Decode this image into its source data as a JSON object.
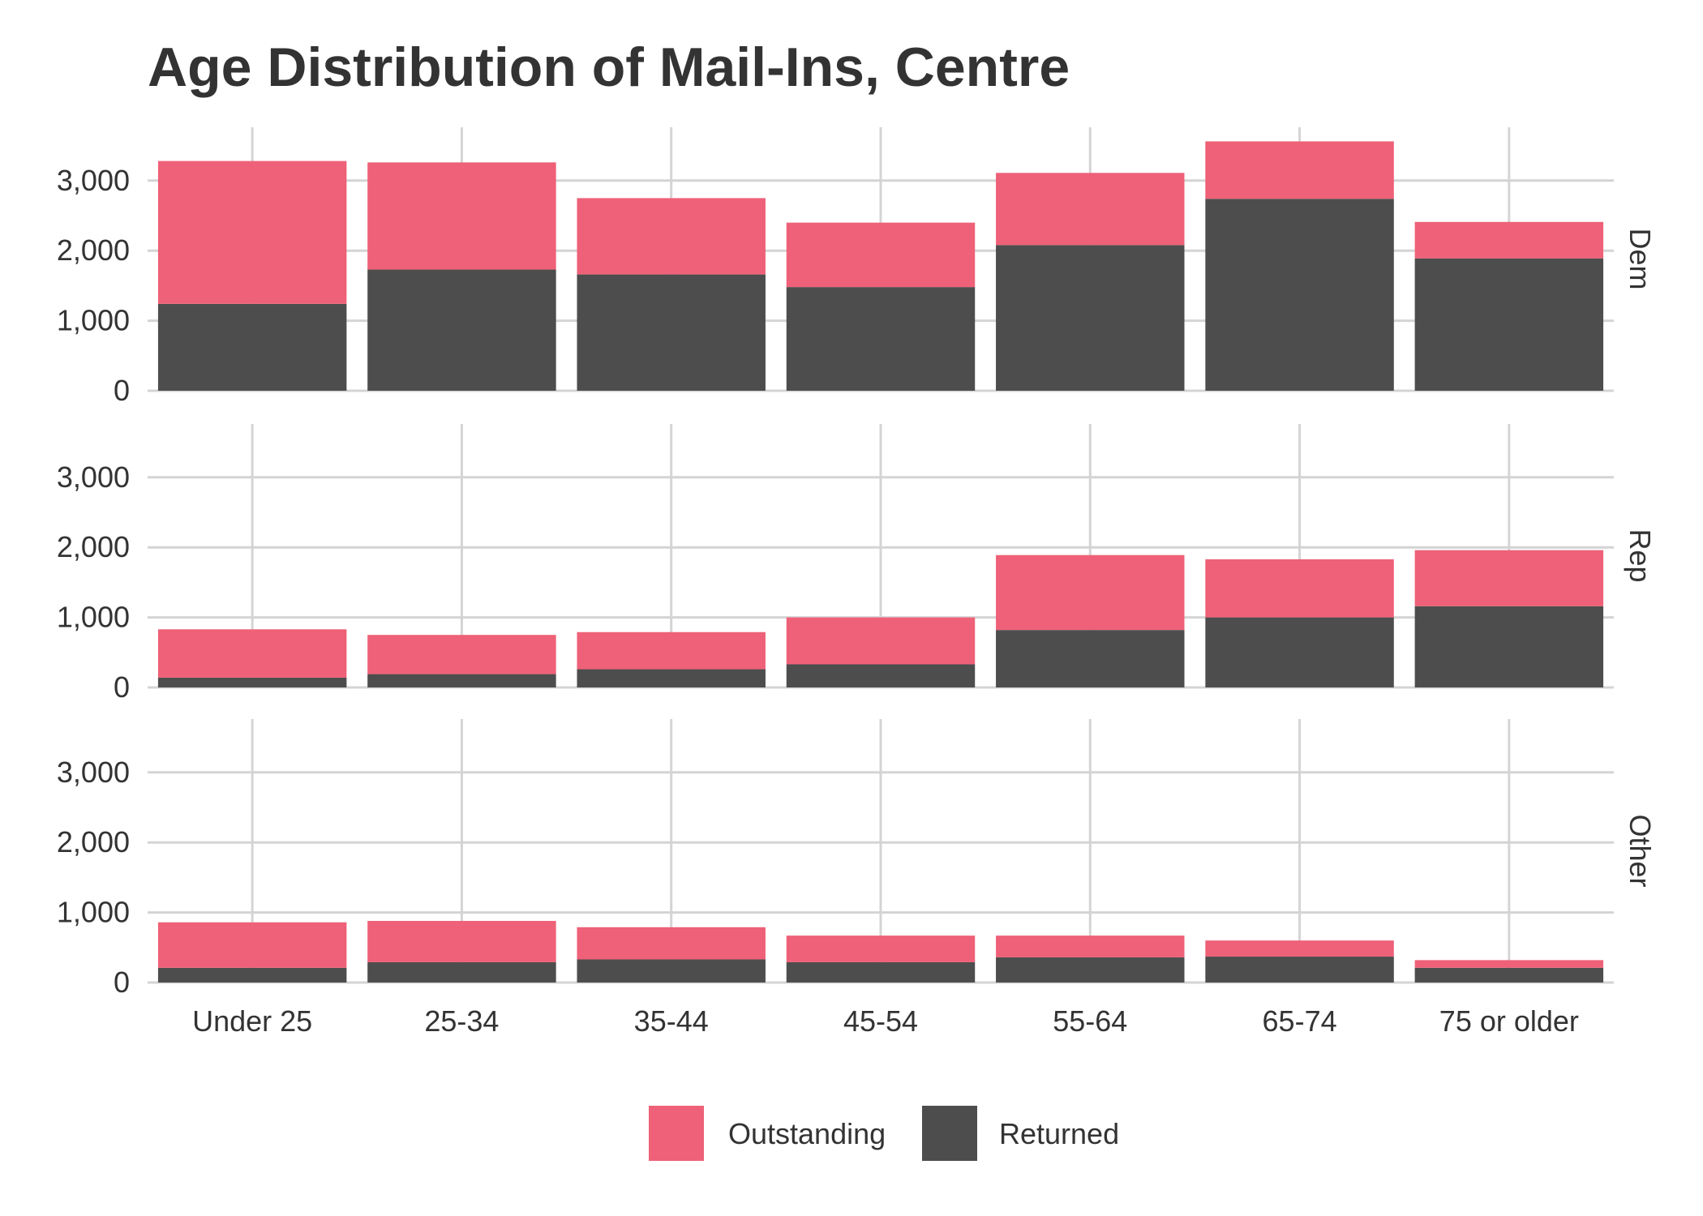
{
  "chart_data": {
    "type": "bar",
    "stacked": true,
    "title": "Age Distribution of Mail-Ins, Centre",
    "xlabel": "",
    "ylabel": "",
    "categories": [
      "Under 25",
      "25-34",
      "35-44",
      "45-54",
      "55-64",
      "65-74",
      "75 or older"
    ],
    "ylim": [
      0,
      3700
    ],
    "yticks": [
      0,
      1000,
      2000,
      3000
    ],
    "ytick_labels": [
      "0",
      "1,000",
      "2,000",
      "3,000"
    ],
    "grid": true,
    "legend_position": "bottom",
    "colors": {
      "Outstanding": "#ee6178",
      "Returned": "#4d4d4d"
    },
    "facets": [
      {
        "name": "Dem",
        "series": [
          {
            "name": "Returned",
            "values": [
              1240,
              1730,
              1660,
              1480,
              2080,
              2740,
              1890
            ]
          },
          {
            "name": "Outstanding",
            "values": [
              2040,
              1530,
              1090,
              920,
              1030,
              820,
              520
            ]
          }
        ]
      },
      {
        "name": "Rep",
        "series": [
          {
            "name": "Returned",
            "values": [
              140,
              190,
              260,
              330,
              820,
              1000,
              1160
            ]
          },
          {
            "name": "Outstanding",
            "values": [
              690,
              560,
              530,
              670,
              1070,
              830,
              800
            ]
          }
        ]
      },
      {
        "name": "Other",
        "series": [
          {
            "name": "Returned",
            "values": [
              210,
              290,
              330,
              290,
              360,
              370,
              210
            ]
          },
          {
            "name": "Outstanding",
            "values": [
              650,
              590,
              460,
              380,
              310,
              230,
              110
            ]
          }
        ]
      }
    ],
    "legend": [
      "Outstanding",
      "Returned"
    ]
  }
}
